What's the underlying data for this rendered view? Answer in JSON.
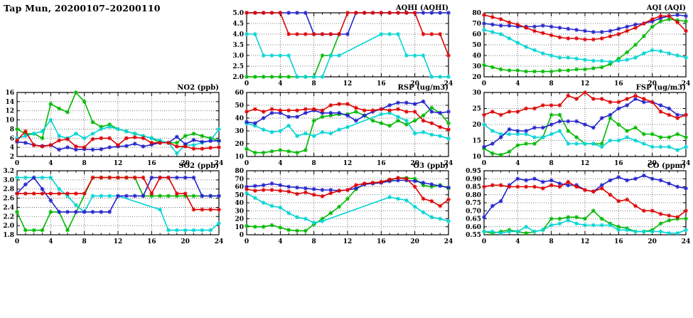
{
  "page": {
    "title": "Tap Mun, 20200107–20200110"
  },
  "x_axis": {
    "min": 0,
    "max": 24,
    "ticks": [
      0,
      4,
      8,
      12,
      16,
      20,
      24
    ]
  },
  "palette": {
    "red": "#dd0000",
    "blue": "#2222cc",
    "green": "#00b800",
    "cyan": "#00d4d4"
  },
  "chart_data": [
    {
      "id": "aqhi",
      "type": "line",
      "title": "AQHI (AQHI)",
      "ylim": [
        2.0,
        5.0
      ],
      "yticks": [
        "2.0",
        "2.5",
        "3.0",
        "3.5",
        "4.0",
        "4.5",
        "5.0"
      ],
      "series": [
        {
          "name": "green",
          "values": [
            2,
            2,
            2,
            2,
            2,
            2,
            2,
            2,
            2,
            3,
            3,
            4,
            null,
            null,
            null,
            null,
            null,
            null,
            null,
            null,
            null,
            null,
            null,
            null,
            null
          ]
        },
        {
          "name": "cyan",
          "values": [
            4,
            4,
            3,
            3,
            3,
            3,
            2,
            2,
            2,
            2,
            3,
            3,
            null,
            null,
            null,
            null,
            4,
            4,
            4,
            3,
            3,
            3,
            2,
            2,
            2
          ]
        },
        {
          "name": "blue",
          "values": [
            5,
            5,
            5,
            5,
            5,
            5,
            5,
            5,
            4,
            4,
            4,
            4,
            4,
            5,
            5,
            5,
            5,
            5,
            5,
            5,
            5,
            5,
            5,
            5,
            5
          ]
        },
        {
          "name": "red",
          "values": [
            5,
            5,
            5,
            5,
            5,
            4,
            4,
            4,
            4,
            4,
            4,
            4,
            5,
            5,
            5,
            5,
            5,
            5,
            5,
            5,
            5,
            4,
            4,
            4,
            3
          ]
        }
      ]
    },
    {
      "id": "aqi",
      "type": "line",
      "title": "AQI (AQI)",
      "ylim": [
        20,
        80
      ],
      "yticks": [
        "20",
        "30",
        "40",
        "50",
        "60",
        "70",
        "80"
      ],
      "series": [
        {
          "name": "green",
          "values": [
            31,
            29,
            27,
            26,
            26,
            25,
            25,
            25,
            25,
            26,
            26,
            27,
            27,
            28,
            29,
            32,
            37,
            43,
            50,
            58,
            67,
            72,
            74,
            73,
            72
          ]
        },
        {
          "name": "cyan",
          "values": [
            64,
            62,
            60,
            56,
            52,
            48,
            45,
            42,
            40,
            38,
            38,
            37,
            36,
            35,
            35,
            34,
            35,
            36,
            38,
            42,
            45,
            44,
            42,
            40,
            38
          ]
        },
        {
          "name": "blue",
          "values": [
            70,
            69,
            68,
            68,
            67,
            67,
            67,
            68,
            67,
            66,
            65,
            64,
            63,
            62,
            62,
            63,
            65,
            67,
            69,
            70,
            72,
            75,
            77,
            78,
            77
          ]
        },
        {
          "name": "red",
          "values": [
            78,
            76,
            74,
            71,
            69,
            66,
            63,
            61,
            59,
            57,
            56,
            56,
            55,
            55,
            56,
            58,
            60,
            63,
            66,
            70,
            74,
            77,
            77,
            71,
            63
          ]
        }
      ]
    },
    {
      "id": "no2",
      "type": "line",
      "title": "NO2 (ppb)",
      "ylim": [
        2,
        16
      ],
      "yticks": [
        "2",
        "4",
        "6",
        "8",
        "10",
        "12",
        "14",
        "16"
      ],
      "series": [
        {
          "name": "green",
          "values": [
            8,
            7,
            7,
            6,
            13.5,
            12.5,
            11.7,
            16,
            14,
            9.5,
            8.5,
            9,
            8,
            7.5,
            7,
            6.5,
            6,
            5,
            5,
            5,
            6.5,
            7,
            6.5,
            6,
            5.5
          ]
        },
        {
          "name": "cyan",
          "values": [
            6,
            6.5,
            7,
            7.5,
            10,
            6.5,
            6,
            7,
            6,
            7,
            8,
            8.5,
            8,
            7.5,
            7,
            6.5,
            6,
            5.5,
            5,
            2.7,
            4.5,
            4.5,
            5,
            5.5,
            8
          ]
        },
        {
          "name": "blue",
          "values": [
            5.2,
            5,
            4.5,
            4.3,
            4.5,
            3.5,
            4,
            3.5,
            3.6,
            3.5,
            3.6,
            4,
            4.2,
            4.3,
            4.8,
            4.2,
            4.6,
            5,
            5,
            6.3,
            4.7,
            5.6,
            5.2,
            5.4,
            5.4
          ]
        },
        {
          "name": "red",
          "values": [
            5.5,
            7.5,
            4.5,
            4.2,
            4.5,
            5.5,
            5.8,
            4.2,
            4,
            5.8,
            6,
            6,
            4.5,
            6,
            6.2,
            6,
            5,
            5,
            5,
            4.2,
            4.2,
            3.7,
            3.7,
            3.9,
            4
          ]
        }
      ]
    },
    {
      "id": "rsp",
      "type": "line",
      "title": "RSP (ug/m3)",
      "ylim": [
        10,
        60
      ],
      "yticks": [
        "10",
        "20",
        "30",
        "40",
        "50",
        "60"
      ],
      "series": [
        {
          "name": "green",
          "values": [
            16,
            13,
            13,
            14,
            15,
            14,
            13,
            15,
            38,
            41,
            42,
            43,
            43,
            45,
            42,
            38,
            36,
            34,
            38,
            35,
            38,
            42,
            48,
            44,
            36
          ]
        },
        {
          "name": "cyan",
          "values": [
            36,
            34,
            31,
            29,
            30,
            34,
            26,
            28,
            26,
            29,
            28,
            31,
            33,
            null,
            null,
            null,
            43,
            44,
            41,
            38,
            28,
            29,
            27,
            26,
            24
          ]
        },
        {
          "name": "blue",
          "values": [
            37,
            36,
            40,
            44,
            44,
            41,
            41,
            44,
            46,
            44,
            44,
            44,
            42,
            38,
            42,
            45,
            47,
            50,
            52,
            52,
            51,
            53,
            45,
            44,
            45
          ]
        },
        {
          "name": "red",
          "values": [
            45,
            47,
            45,
            47,
            46,
            46,
            46,
            47,
            47,
            46,
            50,
            51,
            51,
            48,
            46,
            46,
            47,
            46,
            47,
            45,
            45,
            38,
            36,
            33,
            31
          ]
        }
      ]
    },
    {
      "id": "fsp",
      "type": "line",
      "title": "FSP (ug/m3)",
      "ylim": [
        10,
        30
      ],
      "yticks": [
        "10",
        "15",
        "20",
        "25",
        "30"
      ],
      "series": [
        {
          "name": "green",
          "values": [
            12.5,
            11,
            10.5,
            11.5,
            13.5,
            14,
            14,
            16,
            23,
            23,
            18,
            16,
            14,
            14,
            14,
            22,
            20,
            18,
            19,
            17,
            17,
            16,
            16,
            17,
            16
          ]
        },
        {
          "name": "cyan",
          "values": [
            20,
            18,
            17,
            17,
            17,
            17,
            16,
            16,
            17,
            18,
            14,
            14,
            14,
            14,
            13,
            15,
            15,
            16,
            15,
            14,
            13,
            13,
            13,
            12,
            13
          ]
        },
        {
          "name": "blue",
          "values": [
            13,
            14,
            16,
            18.5,
            18,
            18,
            19,
            19,
            20,
            21,
            21,
            21,
            20,
            19,
            22,
            23,
            25,
            26,
            28,
            27,
            27,
            26,
            25,
            23,
            23
          ]
        },
        {
          "name": "red",
          "values": [
            23,
            24,
            23,
            24,
            24,
            25,
            25,
            26,
            26,
            26,
            29,
            28,
            30,
            28,
            28,
            27,
            27,
            28,
            29,
            28,
            27,
            24,
            23,
            22,
            23
          ]
        }
      ]
    },
    {
      "id": "so2",
      "type": "line",
      "title": "SO2 (ppb)",
      "ylim": [
        1.8,
        3.2
      ],
      "yticks": [
        "1.8",
        "2.0",
        "2.2",
        "2.4",
        "2.6",
        "2.8",
        "3.0",
        "3.2"
      ],
      "series": [
        {
          "name": "green",
          "values": [
            2.3,
            1.9,
            1.9,
            1.9,
            2.3,
            2.3,
            1.9,
            null,
            null,
            3.05,
            3.05,
            3.05,
            3.05,
            3.05,
            3.05,
            2.65,
            2.65,
            2.65,
            2.65,
            2.65,
            2.65,
            2.65,
            2.65,
            2.65,
            2.65
          ]
        },
        {
          "name": "cyan",
          "values": [
            3.05,
            3.05,
            3.05,
            3.05,
            3.05,
            2.8,
            2.65,
            2.45,
            2.3,
            2.65,
            2.65,
            2.65,
            2.65,
            null,
            null,
            null,
            null,
            2.35,
            1.9,
            1.9,
            1.9,
            1.9,
            1.9,
            1.9,
            2.05
          ]
        },
        {
          "name": "blue",
          "values": [
            2.7,
            2.9,
            3.05,
            2.8,
            2.55,
            2.3,
            2.3,
            2.3,
            2.3,
            2.3,
            2.3,
            2.3,
            2.65,
            2.65,
            2.65,
            2.65,
            3.05,
            3.05,
            3.05,
            3.05,
            3.05,
            3.05,
            2.65,
            2.65,
            2.65
          ]
        },
        {
          "name": "red",
          "values": [
            2.7,
            2.7,
            2.7,
            2.7,
            2.7,
            2.7,
            2.7,
            2.7,
            2.7,
            3.05,
            3.05,
            3.05,
            3.05,
            3.05,
            3.05,
            3.05,
            2.7,
            3.05,
            3.05,
            2.7,
            2.7,
            2.35,
            2.35,
            2.35,
            2.35
          ]
        }
      ]
    },
    {
      "id": "o3",
      "type": "line",
      "title": "O3 (ppb)",
      "ylim": [
        0,
        80
      ],
      "yticks": [
        "0",
        "10",
        "20",
        "30",
        "40",
        "50",
        "60",
        "70",
        "80"
      ],
      "series": [
        {
          "name": "green",
          "values": [
            11,
            10,
            10,
            12,
            9,
            6,
            5,
            5,
            13,
            20,
            27,
            35,
            45,
            57,
            63,
            65,
            66,
            68,
            71,
            71,
            70,
            62,
            60,
            62,
            58
          ]
        },
        {
          "name": "cyan",
          "values": [
            52,
            46,
            40,
            36,
            34,
            27,
            22,
            20,
            15,
            17,
            null,
            null,
            null,
            null,
            null,
            null,
            null,
            47,
            45,
            43,
            35,
            28,
            22,
            20,
            17
          ]
        },
        {
          "name": "blue",
          "values": [
            60,
            61,
            62,
            64,
            62,
            60,
            59,
            58,
            57,
            56,
            56,
            55,
            56,
            58,
            63,
            64,
            65,
            67,
            68,
            68,
            67,
            65,
            63,
            61,
            59
          ]
        },
        {
          "name": "red",
          "values": [
            57,
            55,
            56,
            56,
            55,
            54,
            51,
            53,
            50,
            48,
            52,
            55,
            56,
            62,
            64,
            65,
            66,
            69,
            71,
            70,
            60,
            45,
            42,
            36,
            44
          ]
        }
      ]
    },
    {
      "id": "co",
      "type": "line",
      "title": "CO (ppm)",
      "ylim": [
        0.55,
        0.95
      ],
      "yticks": [
        "0.55",
        "0.60",
        "0.65",
        "0.70",
        "0.75",
        "0.80",
        "0.85",
        "0.90",
        "0.95"
      ],
      "series": [
        {
          "name": "green",
          "values": [
            0.57,
            0.56,
            0.57,
            0.58,
            0.57,
            0.56,
            0.57,
            0.58,
            0.65,
            0.65,
            0.66,
            0.66,
            0.65,
            0.7,
            0.65,
            0.62,
            0.6,
            0.59,
            0.57,
            0.57,
            0.58,
            0.62,
            0.64,
            0.65,
            0.65
          ]
        },
        {
          "name": "cyan",
          "values": [
            0.57,
            0.57,
            0.56,
            0.57,
            0.57,
            0.6,
            0.57,
            0.58,
            0.61,
            0.62,
            0.64,
            0.62,
            0.61,
            0.61,
            0.61,
            0.61,
            0.58,
            0.58,
            0.57,
            0.57,
            0.57,
            0.57,
            0.56,
            0.56,
            0.58
          ]
        },
        {
          "name": "blue",
          "values": [
            0.66,
            0.73,
            0.76,
            0.86,
            0.9,
            0.89,
            0.9,
            0.88,
            0.89,
            0.87,
            0.86,
            0.86,
            0.83,
            0.82,
            0.86,
            0.89,
            0.91,
            0.89,
            0.9,
            0.92,
            0.9,
            0.89,
            0.87,
            0.85,
            0.84
          ]
        },
        {
          "name": "red",
          "values": [
            0.85,
            0.86,
            0.86,
            0.85,
            0.85,
            0.85,
            0.85,
            0.84,
            0.86,
            0.85,
            0.88,
            0.85,
            0.83,
            0.82,
            0.84,
            0.8,
            0.76,
            0.77,
            0.73,
            0.7,
            0.7,
            0.68,
            0.67,
            0.66,
            0.7
          ]
        }
      ]
    }
  ]
}
